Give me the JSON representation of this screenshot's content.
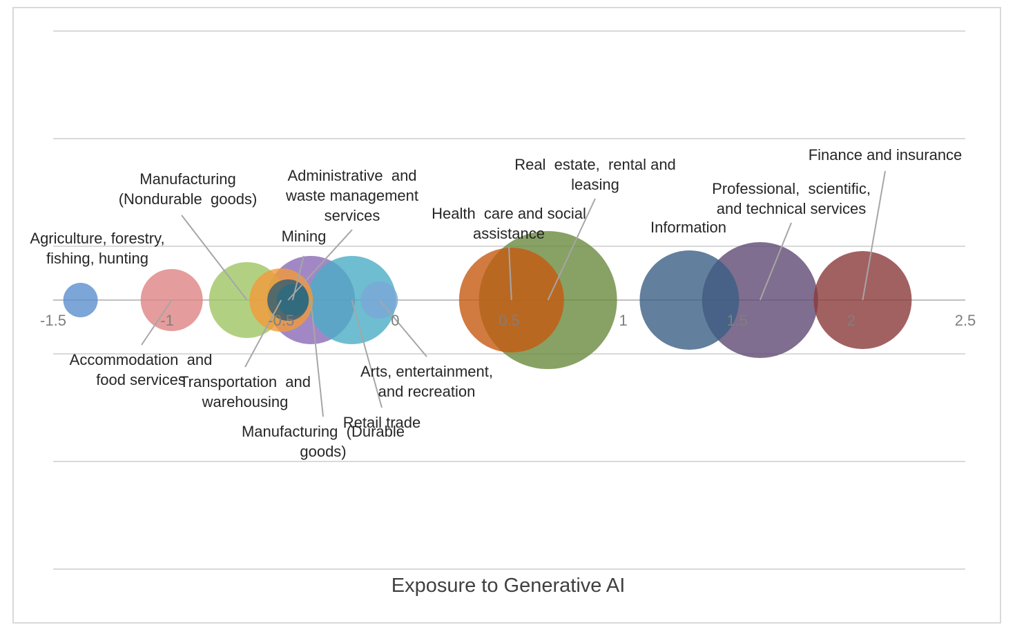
{
  "chart_data": {
    "type": "bubble",
    "xlabel": "Exposure to Generative AI",
    "xlim": [
      -1.5,
      2.5
    ],
    "x_ticks": [
      "-1.5",
      "-1",
      "-0.5",
      "0",
      "0.5",
      "1",
      "1.5",
      "2",
      "2.5"
    ],
    "grid": true,
    "legend": "none",
    "points": [
      {
        "name": "Agriculture, forestry, fishing, hunting",
        "label_lines": [
          "Agriculture, forestry,",
          "fishing, hunting"
        ],
        "x": -1.38,
        "y": 0,
        "size": 0.25,
        "color": "#5b8fce"
      },
      {
        "name": "Accommodation and food services",
        "label_lines": [
          "Accommodation  and",
          "food services"
        ],
        "x": -0.98,
        "y": 0,
        "size": 0.45,
        "color": "#de8383"
      },
      {
        "name": "Manufacturing (Nondurable goods)",
        "label_lines": [
          "Manufacturing",
          "(Nondurable  goods)"
        ],
        "x": -0.65,
        "y": 0,
        "size": 0.55,
        "color": "#9fc463"
      },
      {
        "name": "Transportation and warehousing",
        "label_lines": [
          "Transportation  and",
          "warehousing"
        ],
        "x": -0.5,
        "y": 0,
        "size": 0.46,
        "color": "#f29a3a"
      },
      {
        "name": "Manufacturing (Durable goods)",
        "label_lines": [
          "Manufacturing  (Durable",
          "goods)"
        ],
        "x": -0.37,
        "y": 0,
        "size": 0.64,
        "color": "#8a6ab6"
      },
      {
        "name": "Retail trade",
        "label_lines": [
          "Retail trade"
        ],
        "x": -0.19,
        "y": 0,
        "size": 0.64,
        "color": "#4bacc6"
      },
      {
        "name": "Mining",
        "label_lines": [
          "Mining"
        ],
        "x": -0.45,
        "y": 0,
        "size": 0.23,
        "color": "#2a6b82"
      },
      {
        "name": "Administrative and waste management services",
        "label_lines": [
          "Administrative  and",
          "waste management",
          "services"
        ],
        "x": -0.47,
        "y": 0,
        "size": 0.3,
        "color": "#2f5b73"
      },
      {
        "name": "Arts, entertainment, and recreation",
        "label_lines": [
          "Arts, entertainment,",
          "and recreation"
        ],
        "x": -0.07,
        "y": 0,
        "size": 0.27,
        "color": "#7aa7d8"
      },
      {
        "name": "Health care and social assistance",
        "label_lines": [
          "Health  care and social",
          "assistance"
        ],
        "x": 0.51,
        "y": 0,
        "size": 0.76,
        "color": "#c55a11"
      },
      {
        "name": "Real estate, rental and leasing",
        "label_lines": [
          "Real  estate,  rental and",
          "leasing"
        ],
        "x": 0.67,
        "y": 0,
        "size": 1.0,
        "color": "#6a8a3f"
      },
      {
        "name": "Information",
        "label_lines": [
          "Information"
        ],
        "x": 1.29,
        "y": 0,
        "size": 0.72,
        "color": "#3b5f84"
      },
      {
        "name": "Professional, scientific, and technical services",
        "label_lines": [
          "Professional,  scientific,",
          "and technical services"
        ],
        "x": 1.6,
        "y": 0,
        "size": 0.84,
        "color": "#5f4a73"
      },
      {
        "name": "Finance and insurance",
        "label_lines": [
          "Finance and insurance"
        ],
        "x": 2.05,
        "y": 0,
        "size": 0.71,
        "color": "#8b3a3a"
      }
    ]
  }
}
